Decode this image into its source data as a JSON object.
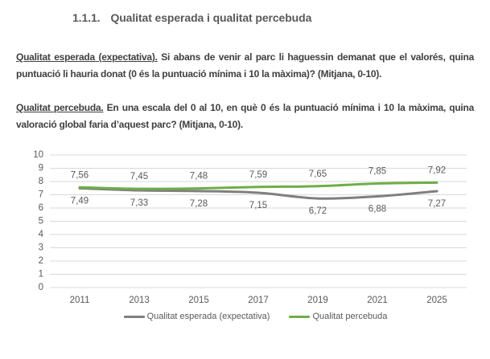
{
  "heading": {
    "number": "1.1.1.",
    "title": "Qualitat esperada i qualitat percebuda"
  },
  "paragraphs": [
    {
      "lead": "Qualitat esperada (expectativa).",
      "body": " Si abans de venir al parc li haguessin demanat que el valorés,  quina puntuació li hauria donat (0 és la puntuació mínima i 10 la màxima)? (Mitjana, 0-10)."
    },
    {
      "lead": "Qualitat percebuda.",
      "body": " En una escala del 0 al 10, en què 0 és la puntuació mínima i 10 la màxima, quina valoració global faria d’aquest parc? (Mitjana, 0-10)."
    }
  ],
  "chart_data": {
    "type": "line",
    "smooth": true,
    "categories": [
      "2011",
      "2013",
      "2015",
      "2017",
      "2019",
      "2021",
      "2025"
    ],
    "series": [
      {
        "name": "Qualitat esperada (expectativa)",
        "color": "#7f7f7f",
        "values": [
          7.49,
          7.33,
          7.28,
          7.15,
          6.72,
          6.88,
          7.27
        ],
        "labels": [
          "7,49",
          "7,33",
          "7,28",
          "7,15",
          "6,72",
          "6,88",
          "7,27"
        ],
        "label_position": "below"
      },
      {
        "name": "Qualitat percebuda",
        "color": "#70ad47",
        "values": [
          7.56,
          7.45,
          7.48,
          7.59,
          7.65,
          7.85,
          7.92
        ],
        "labels": [
          "7,56",
          "7,45",
          "7,48",
          "7,59",
          "7,65",
          "7,85",
          "7,92"
        ],
        "label_position": "above"
      }
    ],
    "ylim": [
      0,
      10
    ],
    "ytick_step": 1,
    "grid": true,
    "legend_position": "bottom",
    "gridline_color": "#d9d9d9",
    "text_color": "#595959"
  }
}
